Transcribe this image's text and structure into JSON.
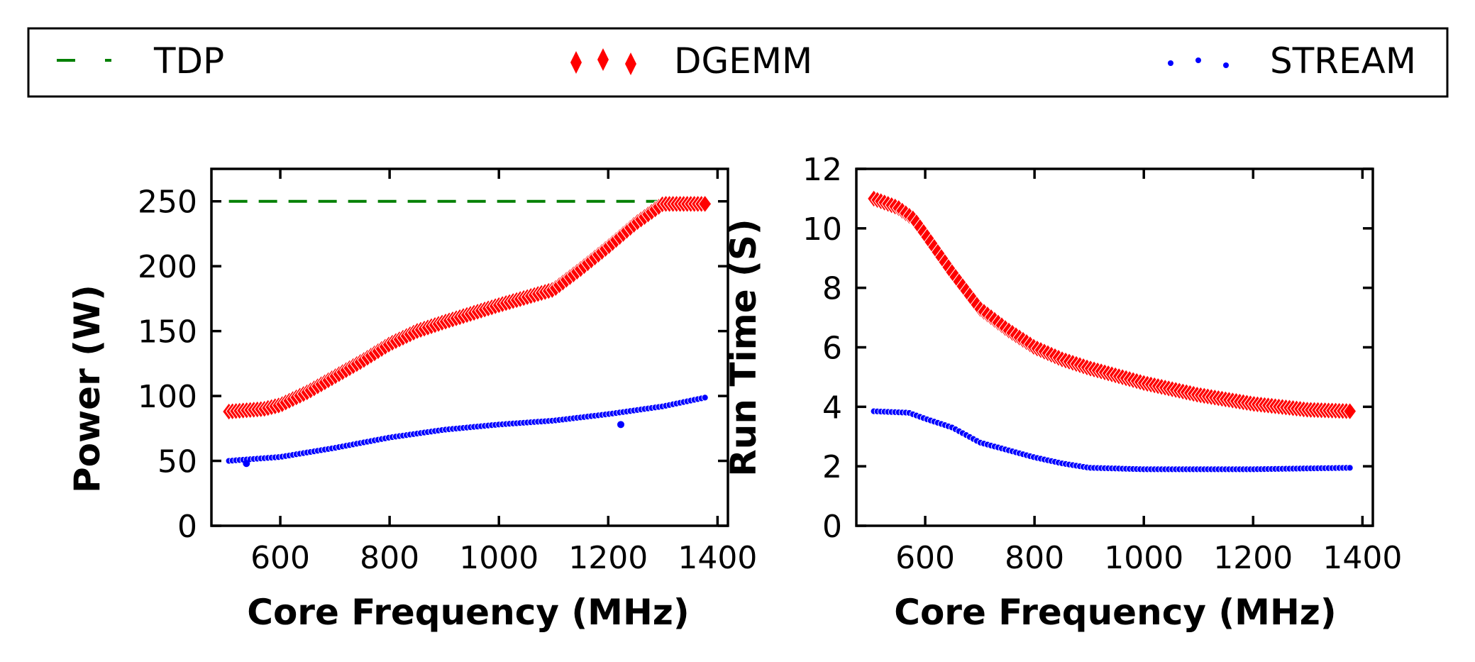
{
  "legend": {
    "items": [
      {
        "label": "TDP",
        "color": "#008000",
        "marker": "dashed-line"
      },
      {
        "label": "DGEMM",
        "color": "#ff0000",
        "marker": "diamond"
      },
      {
        "label": "STREAM",
        "color": "#0000ff",
        "marker": "dot"
      }
    ]
  },
  "chart_data": [
    {
      "type": "scatter",
      "xlabel": "Core Frequency (MHz)",
      "ylabel": "Power (W)",
      "xlim": [
        474,
        1419
      ],
      "ylim": [
        0,
        275
      ],
      "xticks": [
        "600",
        "800",
        "1000",
        "1200",
        "1400"
      ],
      "xtick_values": [
        600,
        800,
        1000,
        1200,
        1400
      ],
      "yticks": [
        "0",
        "50",
        "100",
        "150",
        "200",
        "250"
      ],
      "ytick_values": [
        0,
        50,
        100,
        150,
        200,
        250
      ],
      "grid": false,
      "legend_position": "top",
      "x_range": [
        506,
        1380
      ],
      "x_step": 6.5,
      "series": [
        {
          "name": "TDP",
          "style": "dashed-line",
          "color": "#008000",
          "points": [
            [
              506,
              250
            ],
            [
              1300,
              250
            ]
          ]
        },
        {
          "name": "DGEMM",
          "style": "diamond",
          "color": "#ff0000",
          "points": [
            [
              506,
              88
            ],
            [
              570,
              90
            ],
            [
              600,
              93
            ],
            [
              650,
              103
            ],
            [
              700,
              115
            ],
            [
              750,
              127
            ],
            [
              800,
              140
            ],
            [
              850,
              150
            ],
            [
              900,
              157
            ],
            [
              1000,
              170
            ],
            [
              1100,
              182
            ],
            [
              1150,
              198
            ],
            [
              1200,
              215
            ],
            [
              1250,
              233
            ],
            [
              1300,
              248
            ],
            [
              1380,
              248
            ]
          ]
        },
        {
          "name": "STREAM",
          "style": "dot",
          "color": "#0000ff",
          "points": [
            [
              506,
              50
            ],
            [
              600,
              53
            ],
            [
              700,
              60
            ],
            [
              800,
              68
            ],
            [
              900,
              74
            ],
            [
              1000,
              78
            ],
            [
              1100,
              81
            ],
            [
              1200,
              86
            ],
            [
              1300,
              92
            ],
            [
              1380,
              99
            ]
          ],
          "outliers": [
            [
              538,
              48
            ],
            [
              1223,
              78
            ]
          ]
        }
      ]
    },
    {
      "type": "scatter",
      "xlabel": "Core Frequency (MHz)",
      "ylabel": "Run Time (S)",
      "xlim": [
        474,
        1419
      ],
      "ylim": [
        0,
        12
      ],
      "xticks": [
        "600",
        "800",
        "1000",
        "1200",
        "1400"
      ],
      "xtick_values": [
        600,
        800,
        1000,
        1200,
        1400
      ],
      "yticks": [
        "0",
        "2",
        "4",
        "6",
        "8",
        "10",
        "12"
      ],
      "ytick_values": [
        0,
        2,
        4,
        6,
        8,
        10,
        12
      ],
      "grid": false,
      "x_range": [
        506,
        1380
      ],
      "x_step": 6.5,
      "series": [
        {
          "name": "DGEMM",
          "style": "diamond",
          "color": "#ff0000",
          "points": [
            [
              506,
              11.0
            ],
            [
              550,
              10.7
            ],
            [
              580,
              10.3
            ],
            [
              600,
              9.8
            ],
            [
              650,
              8.5
            ],
            [
              700,
              7.3
            ],
            [
              750,
              6.6
            ],
            [
              800,
              6.0
            ],
            [
              850,
              5.6
            ],
            [
              900,
              5.3
            ],
            [
              1000,
              4.8
            ],
            [
              1100,
              4.4
            ],
            [
              1200,
              4.1
            ],
            [
              1300,
              3.9
            ],
            [
              1380,
              3.85
            ]
          ]
        },
        {
          "name": "STREAM",
          "style": "dot",
          "color": "#0000ff",
          "points": [
            [
              506,
              3.85
            ],
            [
              570,
              3.8
            ],
            [
              600,
              3.6
            ],
            [
              650,
              3.3
            ],
            [
              700,
              2.8
            ],
            [
              750,
              2.55
            ],
            [
              800,
              2.3
            ],
            [
              850,
              2.1
            ],
            [
              900,
              1.95
            ],
            [
              1000,
              1.9
            ],
            [
              1200,
              1.9
            ],
            [
              1380,
              1.95
            ]
          ]
        }
      ]
    }
  ]
}
